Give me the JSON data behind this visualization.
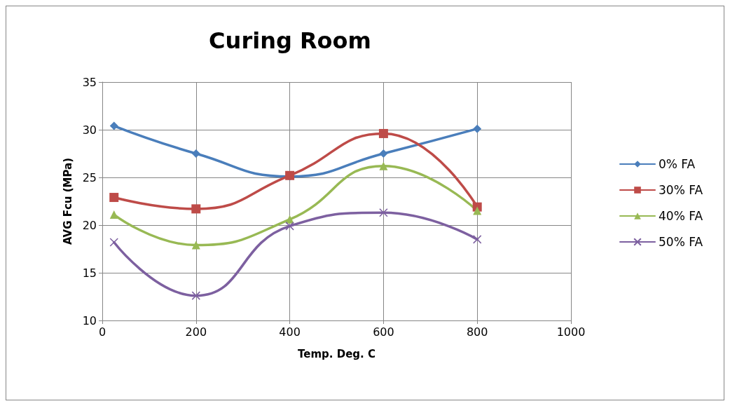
{
  "chart_data": {
    "type": "line",
    "title": "Curing Room",
    "xlabel": "Temp. Deg. C",
    "ylabel": "AVG Fcu (MPa)",
    "x": [
      25,
      200,
      400,
      600,
      800
    ],
    "series": [
      {
        "name": "0% FA",
        "color": "#4a7ebb",
        "marker": "diamond",
        "values": [
          30.4,
          27.5,
          25.1,
          27.5,
          30.1
        ]
      },
      {
        "name": "30% FA",
        "color": "#be4b48",
        "marker": "square",
        "values": [
          22.9,
          21.7,
          25.2,
          29.6,
          21.9
        ]
      },
      {
        "name": "40% FA",
        "color": "#98b954",
        "marker": "triangle",
        "values": [
          21.1,
          17.9,
          20.6,
          26.2,
          21.5
        ]
      },
      {
        "name": "50% FA",
        "color": "#7d60a0",
        "marker": "cross",
        "values": [
          18.2,
          12.6,
          19.9,
          21.3,
          18.5
        ]
      }
    ],
    "xlim": [
      0,
      1000
    ],
    "xticks": [
      0,
      200,
      400,
      600,
      800,
      1000
    ],
    "ylim": [
      10,
      35
    ],
    "yticks": [
      10,
      15,
      20,
      25,
      30,
      35
    ],
    "grid": true,
    "legend": "right",
    "line_style": "solid"
  }
}
